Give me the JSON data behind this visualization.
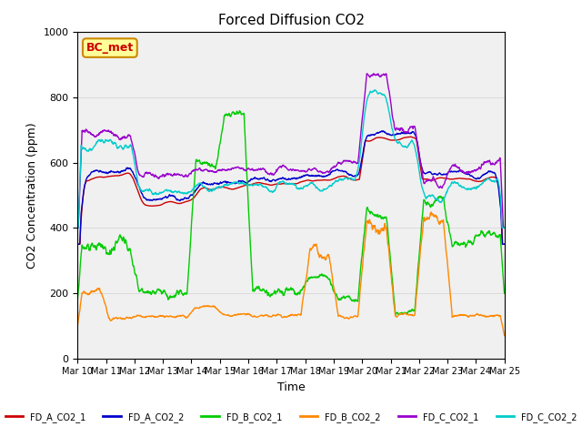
{
  "title": "Forced Diffusion CO2",
  "ylabel": "CO2 Concentration (ppm)",
  "xlabel": "Time",
  "ylim": [
    0,
    1000
  ],
  "annotation_text": "BC_met",
  "annotation_color": "#cc0000",
  "annotation_bg": "#ffff99",
  "legend": [
    {
      "label": "FD_A_CO2_1",
      "color": "#cc0000"
    },
    {
      "label": "FD_A_CO2_2",
      "color": "#0000cc"
    },
    {
      "label": "FD_B_CO2_1",
      "color": "#00cc00"
    },
    {
      "label": "FD_B_CO2_2",
      "color": "#ff8800"
    },
    {
      "label": "FD_C_CO2_1",
      "color": "#9900cc"
    },
    {
      "label": "FD_C_CO2_2",
      "color": "#00cccc"
    }
  ],
  "x_tick_labels": [
    "Mar 10",
    "Mar 11",
    "Mar 12",
    "Mar 13",
    "Mar 14",
    "Mar 15",
    "Mar 16",
    "Mar 17",
    "Mar 18",
    "Mar 19",
    "Mar 20",
    "Mar 21",
    "Mar 22",
    "Mar 23",
    "Mar 24",
    "Mar 25"
  ],
  "n_days": 15,
  "seed": 42
}
